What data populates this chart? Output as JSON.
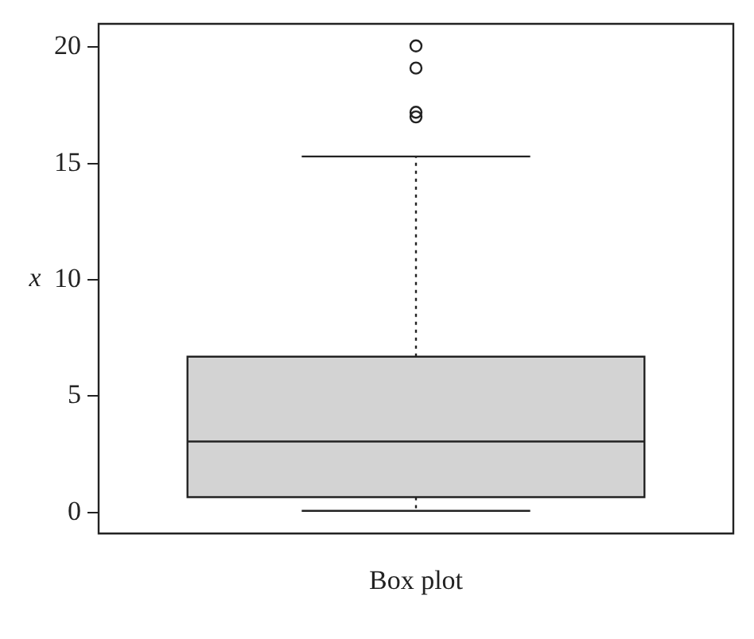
{
  "chart_data": {
    "type": "box",
    "ylabel": "x",
    "categories": [
      "Box plot"
    ],
    "series": [
      {
        "color": "#d3d3d3",
        "boxes": [
          {
            "low": 0.07,
            "q1": 0.66,
            "median": 3.05,
            "q3": 6.7,
            "high": 15.3,
            "outliers": [
              17.0,
              17.2,
              19.1,
              20.05
            ]
          }
        ]
      }
    ],
    "ylim": [
      -0.9,
      21
    ],
    "yticks": [
      0,
      5,
      10,
      15,
      20
    ],
    "grid": false,
    "legend": false
  }
}
